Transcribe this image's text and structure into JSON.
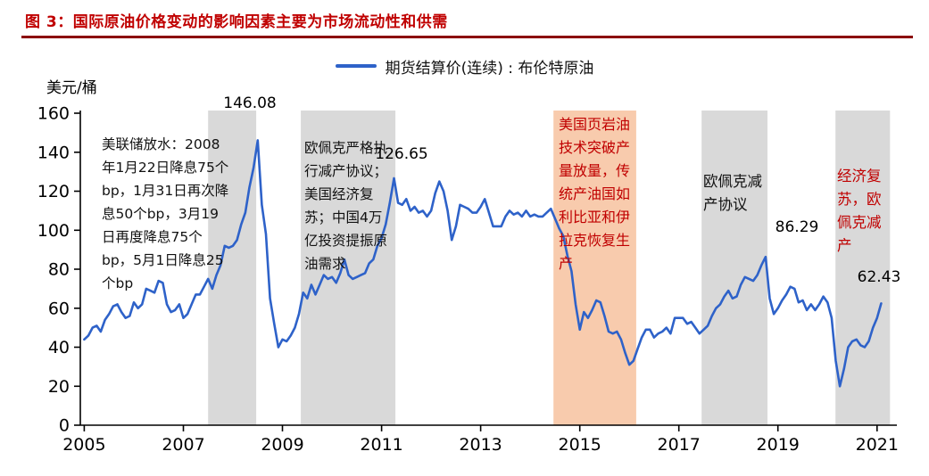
{
  "header": {
    "figure_title": "图 3：国际原油价格变动的影响因素主要为市场流动性和供需"
  },
  "chart_data": {
    "type": "line",
    "title": "图 3：国际原油价格变动的影响因素主要为市场流动性和供需",
    "legend": "期货结算价(连续) : 布伦特原油",
    "ylabel": "美元/桶",
    "xlabel": "",
    "xlim": [
      2004.92,
      2021.4
    ],
    "ylim": [
      0,
      160
    ],
    "yticks": [
      0,
      20,
      40,
      60,
      80,
      100,
      120,
      140,
      160
    ],
    "xticks": [
      2005,
      2007,
      2009,
      2011,
      2013,
      2015,
      2017,
      2019,
      2021
    ],
    "grid": false,
    "legend_position": "top-center",
    "line_color": "#2e62c9",
    "band_gray": "#d9d9d9",
    "band_orange": "#f8cbad",
    "series": [
      {
        "name": "期货结算价(连续) : 布伦特原油",
        "x_start": 2005.0,
        "x_step": 0.083333,
        "values": [
          44,
          46,
          50,
          51,
          48,
          54,
          57,
          61,
          62,
          58,
          55,
          56,
          63,
          60,
          62,
          70,
          69,
          68,
          74,
          73,
          62,
          58,
          59,
          62,
          55,
          57,
          62,
          67,
          67,
          71,
          75,
          70,
          77,
          82,
          92,
          91,
          92,
          95,
          103,
          109,
          122,
          132,
          146.08,
          113,
          98,
          65,
          52,
          40,
          44,
          43,
          46,
          50,
          57,
          68,
          65,
          72,
          67,
          72,
          77,
          75,
          76,
          73,
          78,
          85,
          77,
          75,
          76,
          77,
          78,
          83,
          85,
          92,
          96,
          103,
          114,
          126.65,
          114,
          113,
          116,
          110,
          112,
          109,
          110,
          107,
          110,
          119,
          125,
          120,
          110,
          95,
          102,
          113,
          112,
          111,
          109,
          109,
          112,
          116,
          109,
          102,
          102,
          102,
          107,
          110,
          108,
          109,
          107,
          110,
          107,
          108,
          107,
          107,
          109,
          111,
          106,
          101,
          97,
          87,
          79,
          62,
          49,
          58,
          55,
          59,
          64,
          63,
          56,
          48,
          47,
          48,
          44,
          37,
          31,
          33,
          39,
          45,
          49,
          49,
          45,
          47,
          48,
          50,
          47,
          55,
          55,
          55,
          52,
          53,
          50,
          47,
          49,
          51,
          56,
          60,
          62,
          66,
          69,
          65,
          66,
          72,
          76,
          75,
          74,
          77,
          82,
          86.29,
          65,
          57,
          60,
          64,
          67,
          71,
          70,
          63,
          64,
          59,
          62,
          59,
          62,
          66,
          63,
          55,
          33,
          20,
          29,
          40,
          43,
          44,
          41,
          40,
          43,
          50,
          55,
          62.43
        ]
      }
    ],
    "bands": [
      {
        "from": 2007.5,
        "to": 2008.47,
        "color": "#d9d9d9"
      },
      {
        "from": 2009.37,
        "to": 2011.28,
        "color": "#d9d9d9"
      },
      {
        "from": 2014.47,
        "to": 2016.14,
        "color": "#f8cbad"
      },
      {
        "from": 2017.46,
        "to": 2018.79,
        "color": "#d9d9d9"
      },
      {
        "from": 2020.16,
        "to": 2021.26,
        "color": "#d9d9d9"
      }
    ],
    "point_labels": [
      {
        "text": "146.08",
        "value": 146.08
      },
      {
        "text": "126.65",
        "value": 126.65
      },
      {
        "text": "86.29",
        "value": 86.29
      },
      {
        "text": "62.43",
        "value": 62.43
      }
    ],
    "annotations": [
      {
        "id": "fed-easing",
        "text": "美联储放水：2008年1月22日降息75个bp，1月31日再次降息50个bp，3月19日再度降息75个bp，5月1日降息25个bp",
        "color": "#000000"
      },
      {
        "id": "opec-2009",
        "text": "欧佩克严格执行减产协议；美国经济复苏；中国4万亿投资提振原油需求",
        "color": "#000000"
      },
      {
        "id": "us-shale",
        "text": "美国页岩油技术突破产量放量，传统产油国如利比亚和伊拉克恢复生产",
        "color": "#c00000"
      },
      {
        "id": "opec-2017",
        "text": "欧佩克减产协议",
        "color": "#000000"
      },
      {
        "id": "recovery-2021",
        "text": "经济复苏，欧佩克减产",
        "color": "#c00000"
      }
    ]
  }
}
